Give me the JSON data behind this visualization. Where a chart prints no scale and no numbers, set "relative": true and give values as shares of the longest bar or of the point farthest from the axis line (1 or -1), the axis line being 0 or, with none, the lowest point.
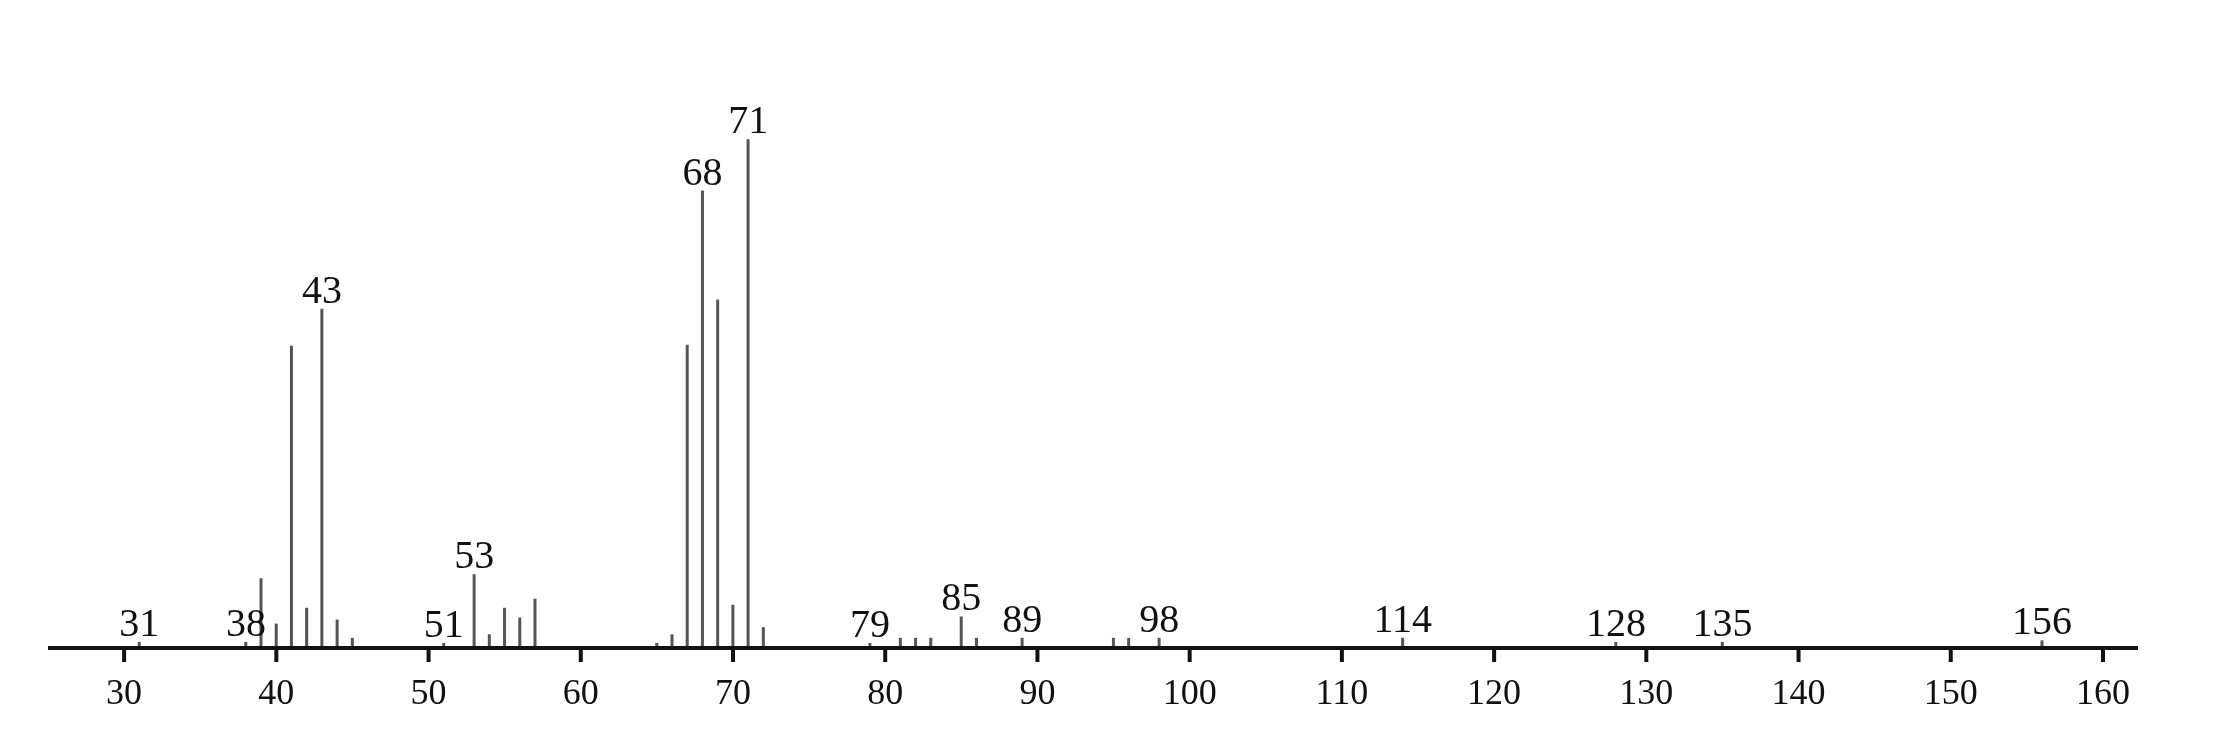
{
  "chart_data": {
    "type": "bar",
    "relative": true,
    "color": "#555555",
    "x": [
      31,
      38,
      39,
      40,
      41,
      42,
      43,
      44,
      45,
      51,
      53,
      54,
      55,
      56,
      57,
      65,
      66,
      67,
      68,
      69,
      70,
      71,
      72,
      79,
      81,
      82,
      83,
      85,
      86,
      89,
      95,
      96,
      98,
      114,
      128,
      135,
      156
    ],
    "values": [
      0.012,
      0.012,
      0.137,
      0.048,
      0.594,
      0.079,
      0.667,
      0.056,
      0.02,
      0.01,
      0.145,
      0.027,
      0.079,
      0.06,
      0.097,
      0.01,
      0.027,
      0.596,
      0.899,
      0.685,
      0.085,
      1,
      0.041,
      0.01,
      0.02,
      0.02,
      0.02,
      0.062,
      0.02,
      0.02,
      0.02,
      0.02,
      0.02,
      0.02,
      0.012,
      0.012,
      0.015
    ],
    "xlim": [
      25,
      162.3
    ],
    "xticks": [
      30,
      40,
      50,
      60,
      70,
      80,
      90,
      100,
      110,
      120,
      130,
      140,
      150,
      160
    ],
    "annotations": [
      {
        "text": "31",
        "x": 31,
        "y": 0.012
      },
      {
        "text": "38",
        "x": 38,
        "y": 0.012
      },
      {
        "text": "43",
        "x": 43,
        "y": 0.667
      },
      {
        "text": "51",
        "x": 51,
        "y": 0.01
      },
      {
        "text": "53",
        "x": 53,
        "y": 0.145
      },
      {
        "text": "68",
        "x": 68,
        "y": 0.899
      },
      {
        "text": "71",
        "x": 71,
        "y": 1
      },
      {
        "text": "79",
        "x": 79,
        "y": 0.01
      },
      {
        "text": "85",
        "x": 85,
        "y": 0.062
      },
      {
        "text": "89",
        "x": 89,
        "y": 0.02
      },
      {
        "text": "98",
        "x": 98,
        "y": 0.02
      },
      {
        "text": "114",
        "x": 114,
        "y": 0.02
      },
      {
        "text": "128",
        "x": 128,
        "y": 0.012
      },
      {
        "text": "135",
        "x": 135,
        "y": 0.012
      },
      {
        "text": "156",
        "x": 156,
        "y": 0.015
      }
    ],
    "grid": false,
    "legend": false
  }
}
